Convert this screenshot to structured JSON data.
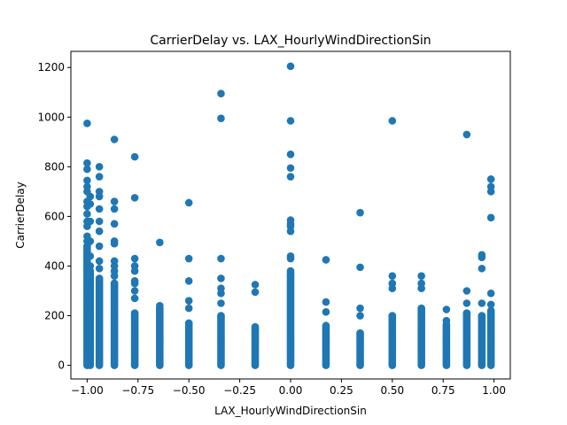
{
  "chart_data": {
    "type": "scatter",
    "title": "CarrierDelay vs. LAX_HourlyWindDirectionSin",
    "xlabel": "LAX_HourlyWindDirectionSin",
    "ylabel": "CarrierDelay",
    "xlim": [
      -1.08,
      1.08
    ],
    "ylim": [
      -55,
      1265
    ],
    "xticks": [
      -1.0,
      -0.75,
      -0.5,
      -0.25,
      0.0,
      0.25,
      0.5,
      0.75,
      1.0
    ],
    "xtick_labels": [
      "−1.00",
      "−0.75",
      "−0.50",
      "−0.25",
      "0.00",
      "0.25",
      "0.50",
      "0.75",
      "1.00"
    ],
    "yticks": [
      0,
      200,
      400,
      600,
      800,
      1000,
      1200
    ],
    "ytick_labels": [
      "0",
      "200",
      "400",
      "600",
      "800",
      "1000",
      "1200"
    ],
    "grid": false,
    "legend": "none",
    "marker_color": "#1f77b4",
    "series": [
      {
        "columns": [
          {
            "x": -1.0,
            "dense_max": 480,
            "outliers": [
              500,
              520,
              560,
              580,
              610,
              640,
              660,
              700,
              720,
              745,
              790,
              815,
              975
            ]
          },
          {
            "x": -0.985,
            "dense_max": 380,
            "outliers": [
              400,
              440,
              500,
              580,
              650,
              680
            ]
          },
          {
            "x": -0.94,
            "dense_max": 350,
            "outliers": [
              390,
              420,
              480,
              540,
              580,
              630,
              680,
              700,
              760,
              800
            ]
          },
          {
            "x": -0.866,
            "dense_max": 330,
            "outliers": [
              360,
              380,
              400,
              420,
              490,
              500,
              570,
              630,
              660,
              910
            ]
          },
          {
            "x": -0.766,
            "dense_max": 210,
            "outliers": [
              270,
              300,
              330,
              340,
              380,
              400,
              430,
              675,
              840
            ]
          },
          {
            "x": -0.643,
            "dense_max": 230,
            "outliers": [
              240,
              495
            ]
          },
          {
            "x": -0.5,
            "dense_max": 170,
            "outliers": [
              230,
              260,
              340,
              430,
              655
            ]
          },
          {
            "x": -0.342,
            "dense_max": 200,
            "outliers": [
              250,
              290,
              310,
              350,
              430,
              995,
              1095
            ]
          },
          {
            "x": -0.174,
            "dense_max": 155,
            "outliers": [
              295,
              325
            ]
          },
          {
            "x": 0.0,
            "dense_max": 370,
            "outliers": [
              380,
              430,
              440,
              540,
              560,
              570,
              585,
              760,
              795,
              850,
              985,
              1205
            ]
          },
          {
            "x": 0.174,
            "dense_max": 160,
            "outliers": [
              215,
              255,
              425
            ]
          },
          {
            "x": 0.342,
            "dense_max": 130,
            "outliers": [
              200,
              230,
              395,
              615
            ]
          },
          {
            "x": 0.5,
            "dense_max": 200,
            "outliers": [
              310,
              330,
              360,
              985
            ]
          },
          {
            "x": 0.643,
            "dense_max": 230,
            "outliers": [
              310,
              330,
              360
            ]
          },
          {
            "x": 0.766,
            "dense_max": 165,
            "outliers": [
              180,
              225
            ]
          },
          {
            "x": 0.866,
            "dense_max": 210,
            "outliers": [
              250,
              300,
              930
            ]
          },
          {
            "x": 0.94,
            "dense_max": 200,
            "outliers": [
              250,
              390,
              435,
              445
            ]
          },
          {
            "x": 0.985,
            "dense_max": 220,
            "outliers": [
              245,
              290,
              595,
              700,
              720,
              750
            ]
          }
        ]
      }
    ]
  }
}
